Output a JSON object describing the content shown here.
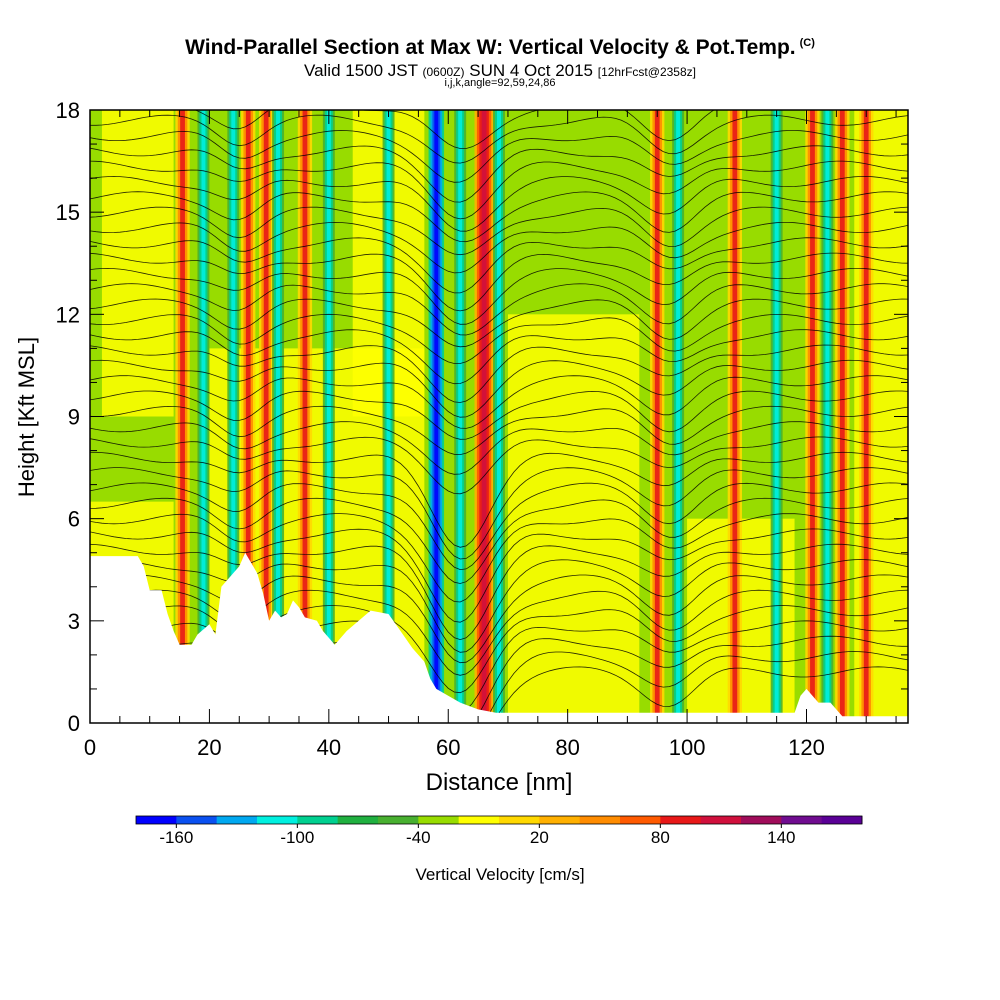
{
  "header": {
    "title": "Wind-Parallel Section at Max W: Vertical Velocity & Pot.Temp.",
    "copyright": "(C)",
    "valid_prefix": "Valid 1500 JST",
    "valid_utc": "(0600Z)",
    "valid_date": "SUN 4 Oct 2015",
    "forecast": "[12hrFcst@2358z]",
    "indices": "i,j,k,angle=92,59,24,86"
  },
  "chart_data": {
    "type": "heatmap",
    "xlabel": "Distance [nm]",
    "ylabel": "Height [Kft MSL]",
    "xlim": [
      0,
      137
    ],
    "ylim": [
      0,
      18
    ],
    "x_ticks": [
      "0",
      "20",
      "40",
      "60",
      "80",
      "100",
      "120"
    ],
    "y_ticks": [
      "0",
      "3",
      "6",
      "9",
      "12",
      "15",
      "18"
    ],
    "colorbar": {
      "label": "Vertical Velocity [cm/s]",
      "ticks": [
        "-160",
        "-100",
        "-40",
        "20",
        "80",
        "140"
      ],
      "colors": [
        "#0000ff",
        "#0a50f0",
        "#00a8f0",
        "#00f0e0",
        "#00d090",
        "#20b040",
        "#48b030",
        "#98dc00",
        "#ffff00",
        "#ffd800",
        "#ffb000",
        "#ff8c00",
        "#ff5a00",
        "#e81818",
        "#d0103c",
        "#a00c5a",
        "#700c90",
        "#5a0096"
      ]
    },
    "velocity_columns": [
      {
        "x": 15.5,
        "kind": "up"
      },
      {
        "x": 19.0,
        "kind": "down"
      },
      {
        "x": 24.0,
        "kind": "down"
      },
      {
        "x": 26.5,
        "kind": "up"
      },
      {
        "x": 29.5,
        "kind": "up"
      },
      {
        "x": 31.5,
        "kind": "down"
      },
      {
        "x": 36.0,
        "kind": "up"
      },
      {
        "x": 40.0,
        "kind": "down"
      },
      {
        "x": 50.0,
        "kind": "down"
      },
      {
        "x": 58.0,
        "kind": "strong-down"
      },
      {
        "x": 62.0,
        "kind": "down"
      },
      {
        "x": 66.0,
        "kind": "strong-up"
      },
      {
        "x": 68.5,
        "kind": "down"
      },
      {
        "x": 95.0,
        "kind": "up"
      },
      {
        "x": 98.5,
        "kind": "down"
      },
      {
        "x": 108.0,
        "kind": "up"
      },
      {
        "x": 115.0,
        "kind": "down"
      },
      {
        "x": 121.0,
        "kind": "up"
      },
      {
        "x": 123.5,
        "kind": "down"
      },
      {
        "x": 126.0,
        "kind": "up"
      },
      {
        "x": 130.0,
        "kind": "up"
      }
    ],
    "terrain_height": [
      [
        0,
        4.9
      ],
      [
        8,
        4.9
      ],
      [
        9,
        4.6
      ],
      [
        10,
        3.9
      ],
      [
        12,
        3.9
      ],
      [
        13,
        3.2
      ],
      [
        14,
        2.7
      ],
      [
        15,
        2.3
      ],
      [
        17,
        2.3
      ],
      [
        18,
        2.6
      ],
      [
        20,
        2.9
      ],
      [
        21,
        2.6
      ],
      [
        22,
        4.0
      ],
      [
        25,
        4.6
      ],
      [
        26,
        5.0
      ],
      [
        27,
        4.7
      ],
      [
        28,
        4.4
      ],
      [
        29,
        3.8
      ],
      [
        30,
        3.0
      ],
      [
        31,
        3.3
      ],
      [
        32,
        3.1
      ],
      [
        33,
        3.2
      ],
      [
        34,
        3.6
      ],
      [
        35,
        3.4
      ],
      [
        36,
        3.1
      ],
      [
        38,
        3.0
      ],
      [
        39,
        2.7
      ],
      [
        41,
        2.3
      ],
      [
        43,
        2.7
      ],
      [
        45,
        3.0
      ],
      [
        47,
        3.3
      ],
      [
        50,
        3.2
      ],
      [
        52,
        2.7
      ],
      [
        54,
        2.2
      ],
      [
        56,
        1.8
      ],
      [
        57,
        1.3
      ],
      [
        58,
        1.0
      ],
      [
        60,
        0.8
      ],
      [
        62,
        0.6
      ],
      [
        65,
        0.4
      ],
      [
        68,
        0.3
      ],
      [
        70,
        0.3
      ],
      [
        80,
        0.3
      ],
      [
        100,
        0.3
      ],
      [
        118,
        0.3
      ],
      [
        119,
        0.8
      ],
      [
        120,
        1.0
      ],
      [
        122,
        0.6
      ],
      [
        124,
        0.6
      ],
      [
        126,
        0.2
      ],
      [
        137,
        0.2
      ]
    ]
  }
}
